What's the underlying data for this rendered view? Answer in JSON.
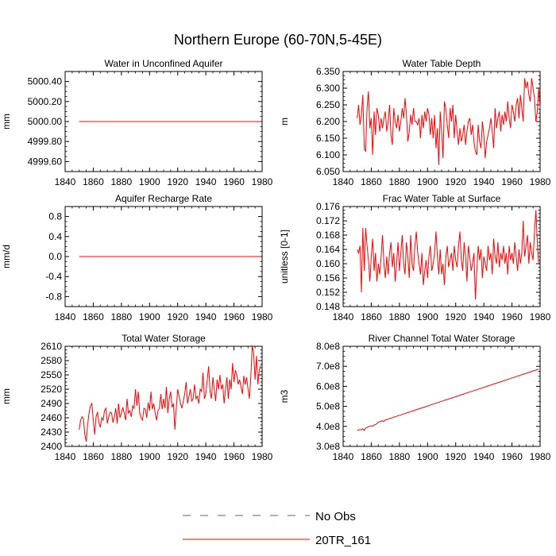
{
  "figure": {
    "title": "Northern Europe (60-70N,5-45E)"
  },
  "legend": {
    "items": [
      {
        "label": "No Obs",
        "color": "#5a5aa8",
        "dash": "dashed"
      },
      {
        "label": "20TR_161",
        "color": "#ff0000",
        "dash": "solid"
      }
    ]
  },
  "chart_data": [
    {
      "id": "aquifer",
      "type": "line",
      "title": "Water in Unconfined Aquifer",
      "xlabel": "",
      "ylabel": "mm",
      "xlim": [
        1840,
        1980
      ],
      "ylim": [
        4999.5,
        5000.5
      ],
      "xticks": [
        1840,
        1860,
        1880,
        1900,
        1920,
        1940,
        1960,
        1980
      ],
      "yticks": [
        4999.6,
        4999.8,
        5000.0,
        5000.2,
        5000.4
      ],
      "ytick_labels": [
        "4999.60",
        "4999.80",
        "5000.00",
        "5000.20",
        "5000.40"
      ],
      "series": [
        {
          "name": "20TR_161",
          "color": "#ff0000",
          "x": [
            1850,
            1979
          ],
          "y": [
            5000.0,
            5000.0
          ]
        }
      ]
    },
    {
      "id": "wtd",
      "type": "line",
      "title": "Water Table Depth",
      "xlabel": "",
      "ylabel": "m",
      "xlim": [
        1840,
        1980
      ],
      "ylim": [
        6.05,
        6.35
      ],
      "xticks": [
        1840,
        1860,
        1880,
        1900,
        1920,
        1940,
        1960,
        1980
      ],
      "yticks": [
        6.05,
        6.1,
        6.15,
        6.2,
        6.25,
        6.3,
        6.35
      ],
      "ytick_labels": [
        "6.050",
        "6.100",
        "6.150",
        "6.200",
        "6.250",
        "6.300",
        "6.350"
      ],
      "series": [
        {
          "name": "20TR_161",
          "color": "#ff0000",
          "x_start": 1850,
          "y": [
            6.21,
            6.25,
            6.19,
            6.22,
            6.28,
            6.12,
            6.11,
            6.24,
            6.29,
            6.18,
            6.21,
            6.1,
            6.23,
            6.16,
            6.24,
            6.22,
            6.17,
            6.21,
            6.18,
            6.21,
            6.23,
            6.17,
            6.2,
            6.25,
            6.16,
            6.13,
            6.24,
            6.2,
            6.18,
            6.22,
            6.17,
            6.2,
            6.24,
            6.21,
            6.27,
            6.22,
            6.14,
            6.17,
            6.22,
            6.19,
            6.24,
            6.2,
            6.2,
            6.19,
            6.21,
            6.15,
            6.22,
            6.18,
            6.23,
            6.2,
            6.24,
            6.22,
            6.16,
            6.21,
            6.15,
            6.22,
            6.12,
            6.18,
            6.07,
            6.23,
            6.17,
            6.09,
            6.26,
            6.24,
            6.19,
            6.15,
            6.24,
            6.2,
            6.25,
            6.15,
            6.22,
            6.17,
            6.13,
            6.18,
            6.14,
            6.16,
            6.19,
            6.13,
            6.17,
            6.2,
            6.21,
            6.16,
            6.19,
            6.14,
            6.11,
            6.1,
            6.19,
            6.14,
            6.12,
            6.2,
            6.16,
            6.09,
            6.14,
            6.16,
            6.18,
            6.21,
            6.17,
            6.12,
            6.24,
            6.18,
            6.21,
            6.23,
            6.17,
            6.22,
            6.19,
            6.23,
            6.2,
            6.26,
            6.21,
            6.18,
            6.25,
            6.23,
            6.2,
            6.25,
            6.27,
            6.21,
            6.28,
            6.24,
            6.2,
            6.33,
            6.3,
            6.32,
            6.28,
            6.26,
            6.33,
            6.3,
            6.27,
            6.2,
            6.23,
            6.3,
            6.24
          ]
        }
      ]
    },
    {
      "id": "recharge",
      "type": "line",
      "title": "Aquifer Recharge Rate",
      "xlabel": "",
      "ylabel": "mm/d",
      "xlim": [
        1840,
        1980
      ],
      "ylim": [
        -1.0,
        1.0
      ],
      "xticks": [
        1840,
        1860,
        1880,
        1900,
        1920,
        1940,
        1960,
        1980
      ],
      "yticks": [
        -0.8,
        -0.4,
        0.0,
        0.4,
        0.8
      ],
      "ytick_labels": [
        "-0.8",
        "-0.4",
        "0.0",
        "0.4",
        "0.8"
      ],
      "series": [
        {
          "name": "20TR_161",
          "color": "#ff0000",
          "x": [
            1850,
            1979
          ],
          "y": [
            0.0,
            0.0
          ]
        }
      ]
    },
    {
      "id": "fwts",
      "type": "line",
      "title": "Frac Water Table at Surface",
      "xlabel": "",
      "ylabel": "unitless [0-1]",
      "xlim": [
        1840,
        1980
      ],
      "ylim": [
        0.148,
        0.176
      ],
      "xticks": [
        1840,
        1860,
        1880,
        1900,
        1920,
        1940,
        1960,
        1980
      ],
      "yticks": [
        0.148,
        0.152,
        0.156,
        0.16,
        0.164,
        0.168,
        0.172,
        0.176
      ],
      "ytick_labels": [
        "0.148",
        "0.152",
        "0.156",
        "0.160",
        "0.164",
        "0.168",
        "0.172",
        "0.176"
      ],
      "series": [
        {
          "name": "20TR_161",
          "color": "#ff0000",
          "x_start": 1850,
          "y": [
            0.164,
            0.163,
            0.165,
            0.152,
            0.17,
            0.158,
            0.17,
            0.165,
            0.161,
            0.155,
            0.162,
            0.167,
            0.158,
            0.163,
            0.155,
            0.16,
            0.157,
            0.162,
            0.168,
            0.16,
            0.156,
            0.162,
            0.157,
            0.163,
            0.166,
            0.159,
            0.163,
            0.155,
            0.16,
            0.166,
            0.158,
            0.163,
            0.168,
            0.16,
            0.157,
            0.166,
            0.162,
            0.156,
            0.168,
            0.16,
            0.158,
            0.165,
            0.169,
            0.163,
            0.16,
            0.157,
            0.163,
            0.154,
            0.158,
            0.161,
            0.156,
            0.162,
            0.165,
            0.158,
            0.16,
            0.163,
            0.169,
            0.162,
            0.157,
            0.164,
            0.157,
            0.16,
            0.154,
            0.162,
            0.165,
            0.159,
            0.161,
            0.163,
            0.158,
            0.165,
            0.161,
            0.159,
            0.165,
            0.169,
            0.161,
            0.158,
            0.166,
            0.162,
            0.155,
            0.165,
            0.162,
            0.158,
            0.16,
            0.163,
            0.15,
            0.158,
            0.165,
            0.161,
            0.164,
            0.156,
            0.162,
            0.16,
            0.158,
            0.165,
            0.161,
            0.163,
            0.157,
            0.167,
            0.162,
            0.16,
            0.166,
            0.159,
            0.163,
            0.161,
            0.165,
            0.16,
            0.163,
            0.157,
            0.165,
            0.161,
            0.163,
            0.16,
            0.166,
            0.162,
            0.158,
            0.164,
            0.16,
            0.163,
            0.172,
            0.162,
            0.165,
            0.168,
            0.16,
            0.166,
            0.163,
            0.161,
            0.169,
            0.175,
            0.166,
            0.16
          ]
        }
      ]
    },
    {
      "id": "tws",
      "type": "line",
      "title": "Total Water Storage",
      "xlabel": "",
      "ylabel": "mm",
      "xlim": [
        1840,
        1980
      ],
      "ylim": [
        2400,
        2610
      ],
      "xticks": [
        1840,
        1860,
        1880,
        1900,
        1920,
        1940,
        1960,
        1980
      ],
      "yticks": [
        2400,
        2430,
        2460,
        2490,
        2520,
        2550,
        2580,
        2610
      ],
      "ytick_labels": [
        "2400",
        "2430",
        "2460",
        "2490",
        "2520",
        "2550",
        "2580",
        "2610"
      ],
      "series": [
        {
          "name": "20TR_161",
          "color": "#ff0000",
          "x_start": 1850,
          "y": [
            2435,
            2455,
            2462,
            2458,
            2425,
            2410,
            2445,
            2470,
            2485,
            2490,
            2455,
            2425,
            2462,
            2472,
            2450,
            2440,
            2460,
            2455,
            2475,
            2480,
            2448,
            2462,
            2472,
            2470,
            2450,
            2462,
            2480,
            2448,
            2490,
            2460,
            2470,
            2482,
            2470,
            2455,
            2500,
            2470,
            2475,
            2462,
            2485,
            2480,
            2520,
            2485,
            2515,
            2470,
            2460,
            2455,
            2480,
            2478,
            2460,
            2492,
            2475,
            2515,
            2478,
            2490,
            2470,
            2455,
            2475,
            2480,
            2510,
            2478,
            2500,
            2480,
            2525,
            2470,
            2500,
            2515,
            2482,
            2490,
            2435,
            2480,
            2520,
            2505,
            2490,
            2480,
            2495,
            2510,
            2535,
            2490,
            2505,
            2520,
            2495,
            2500,
            2530,
            2500,
            2505,
            2490,
            2520,
            2515,
            2555,
            2500,
            2510,
            2540,
            2568,
            2515,
            2500,
            2545,
            2520,
            2495,
            2540,
            2520,
            2550,
            2520,
            2530,
            2490,
            2520,
            2545,
            2500,
            2540,
            2520,
            2575,
            2535,
            2560,
            2550,
            2530,
            2540,
            2525,
            2510,
            2548,
            2530,
            2545,
            2520,
            2500,
            2548,
            2612,
            2595,
            2540,
            2590,
            2530,
            2560,
            2570
          ]
        }
      ]
    },
    {
      "id": "river",
      "type": "line",
      "title": "River Channel Total Water Storage",
      "xlabel": "",
      "ylabel": "m3",
      "xlim": [
        1840,
        1980
      ],
      "ylim": [
        300000000,
        800000000
      ],
      "xticks": [
        1840,
        1860,
        1880,
        1900,
        1920,
        1940,
        1960,
        1980
      ],
      "yticks": [
        300000000,
        400000000,
        500000000,
        600000000,
        700000000,
        800000000
      ],
      "ytick_labels": [
        "3.0e8",
        "4.0e8",
        "5.0e8",
        "6.0e8",
        "7.0e8",
        "8.0e8"
      ],
      "series": [
        {
          "name": "20TR_161",
          "color": "#ff0000",
          "x_start": 1850,
          "y": [
            380000000,
            382000000,
            384000000,
            383000000,
            388000000,
            380000000,
            392000000,
            394000000,
            398000000,
            401000000,
            403000000,
            401000000,
            407000000,
            409000000,
            413000000,
            421000000,
            423000000,
            426000000,
            428000000,
            425000000,
            432000000,
            434000000,
            436000000,
            439000000,
            441000000,
            443000000,
            446000000,
            448000000,
            450000000,
            453000000,
            455000000,
            457000000,
            460000000,
            462000000,
            464000000,
            467000000,
            469000000,
            471000000,
            474000000,
            476000000,
            478000000,
            481000000,
            483000000,
            485000000,
            488000000,
            490000000,
            492000000,
            495000000,
            497000000,
            499000000,
            502000000,
            504000000,
            506000000,
            509000000,
            511000000,
            513000000,
            516000000,
            518000000,
            520000000,
            523000000,
            525000000,
            527000000,
            530000000,
            532000000,
            534000000,
            537000000,
            539000000,
            541000000,
            544000000,
            546000000,
            548000000,
            551000000,
            553000000,
            555000000,
            558000000,
            560000000,
            562000000,
            565000000,
            567000000,
            569000000,
            572000000,
            574000000,
            576000000,
            579000000,
            581000000,
            583000000,
            586000000,
            588000000,
            590000000,
            593000000,
            595000000,
            597000000,
            600000000,
            602000000,
            604000000,
            607000000,
            609000000,
            611000000,
            614000000,
            616000000,
            618000000,
            621000000,
            623000000,
            625000000,
            628000000,
            630000000,
            632000000,
            635000000,
            637000000,
            639000000,
            642000000,
            644000000,
            646000000,
            649000000,
            651000000,
            653000000,
            656000000,
            658000000,
            660000000,
            663000000,
            665000000,
            667000000,
            670000000,
            672000000,
            674000000,
            677000000,
            679000000,
            681000000,
            684000000,
            686000000
          ]
        }
      ]
    }
  ]
}
